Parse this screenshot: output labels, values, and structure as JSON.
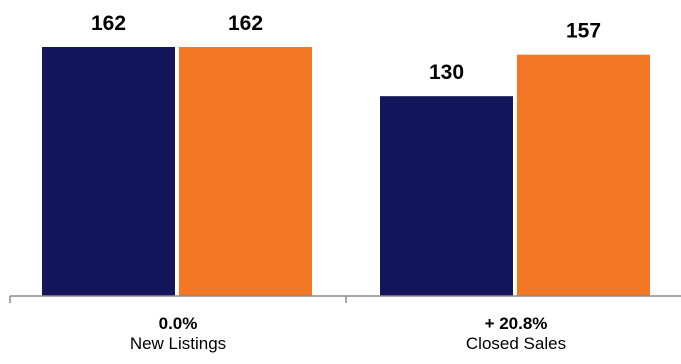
{
  "chart_data": {
    "type": "bar",
    "categories": [
      "New Listings",
      "Closed Sales"
    ],
    "category_changes": [
      "0.0%",
      "+ 20.8%"
    ],
    "series": [
      {
        "values": [
          162,
          130
        ],
        "color": "#13165a"
      },
      {
        "values": [
          162,
          157
        ],
        "color": "#f47726"
      }
    ],
    "ylim": [
      0,
      162
    ],
    "data_labels": true,
    "grid": false,
    "legend": "none"
  }
}
